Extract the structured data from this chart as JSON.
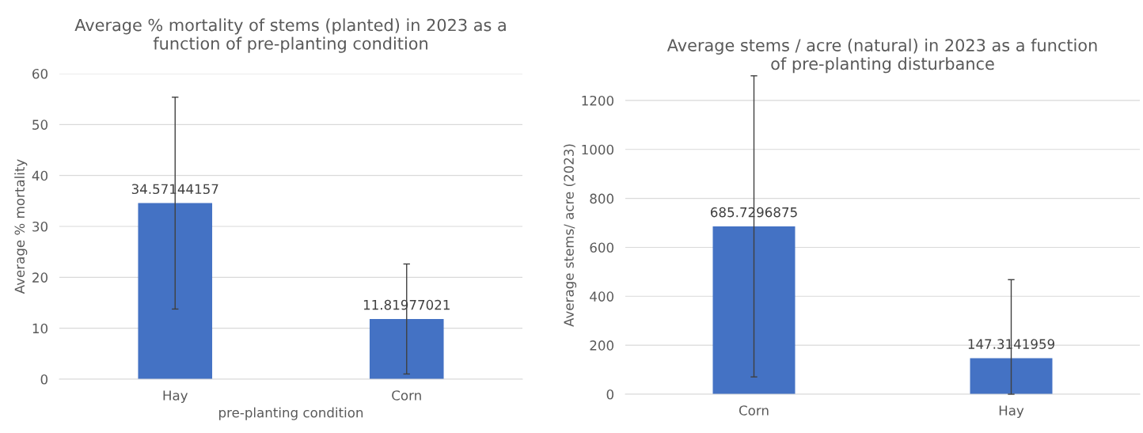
{
  "chart_data": [
    {
      "type": "bar",
      "title": "Average % mortality of stems (planted) in 2023 as a\nfunction of pre-planting condition",
      "xlabel": "pre-planting condition",
      "ylabel": "Average % mortality",
      "categories": [
        "Hay",
        "Corn"
      ],
      "values": [
        34.57144157,
        11.81977021
      ],
      "errors": [
        20.8,
        10.8
      ],
      "color": "#4472c4",
      "ylim": [
        0,
        60
      ],
      "yticks": [
        0,
        10,
        20,
        30,
        40,
        50,
        60
      ],
      "grid": "y",
      "data_labels": true
    },
    {
      "type": "bar",
      "title": "Average stems / acre (natural) in 2023 as a function\nof pre-planting disturbance",
      "ylabel": "Average stems/ acre (2023)",
      "categories": [
        "Corn",
        "Hay"
      ],
      "values": [
        685.7296875,
        147.3141959
      ],
      "errors": [
        615,
        [
          0,
          468
        ]
      ],
      "color": "#4472c4",
      "ylim": [
        0,
        1300
      ],
      "yticks": [
        0,
        200,
        400,
        600,
        800,
        1000,
        1200
      ],
      "grid": "y",
      "data_labels": true
    }
  ]
}
